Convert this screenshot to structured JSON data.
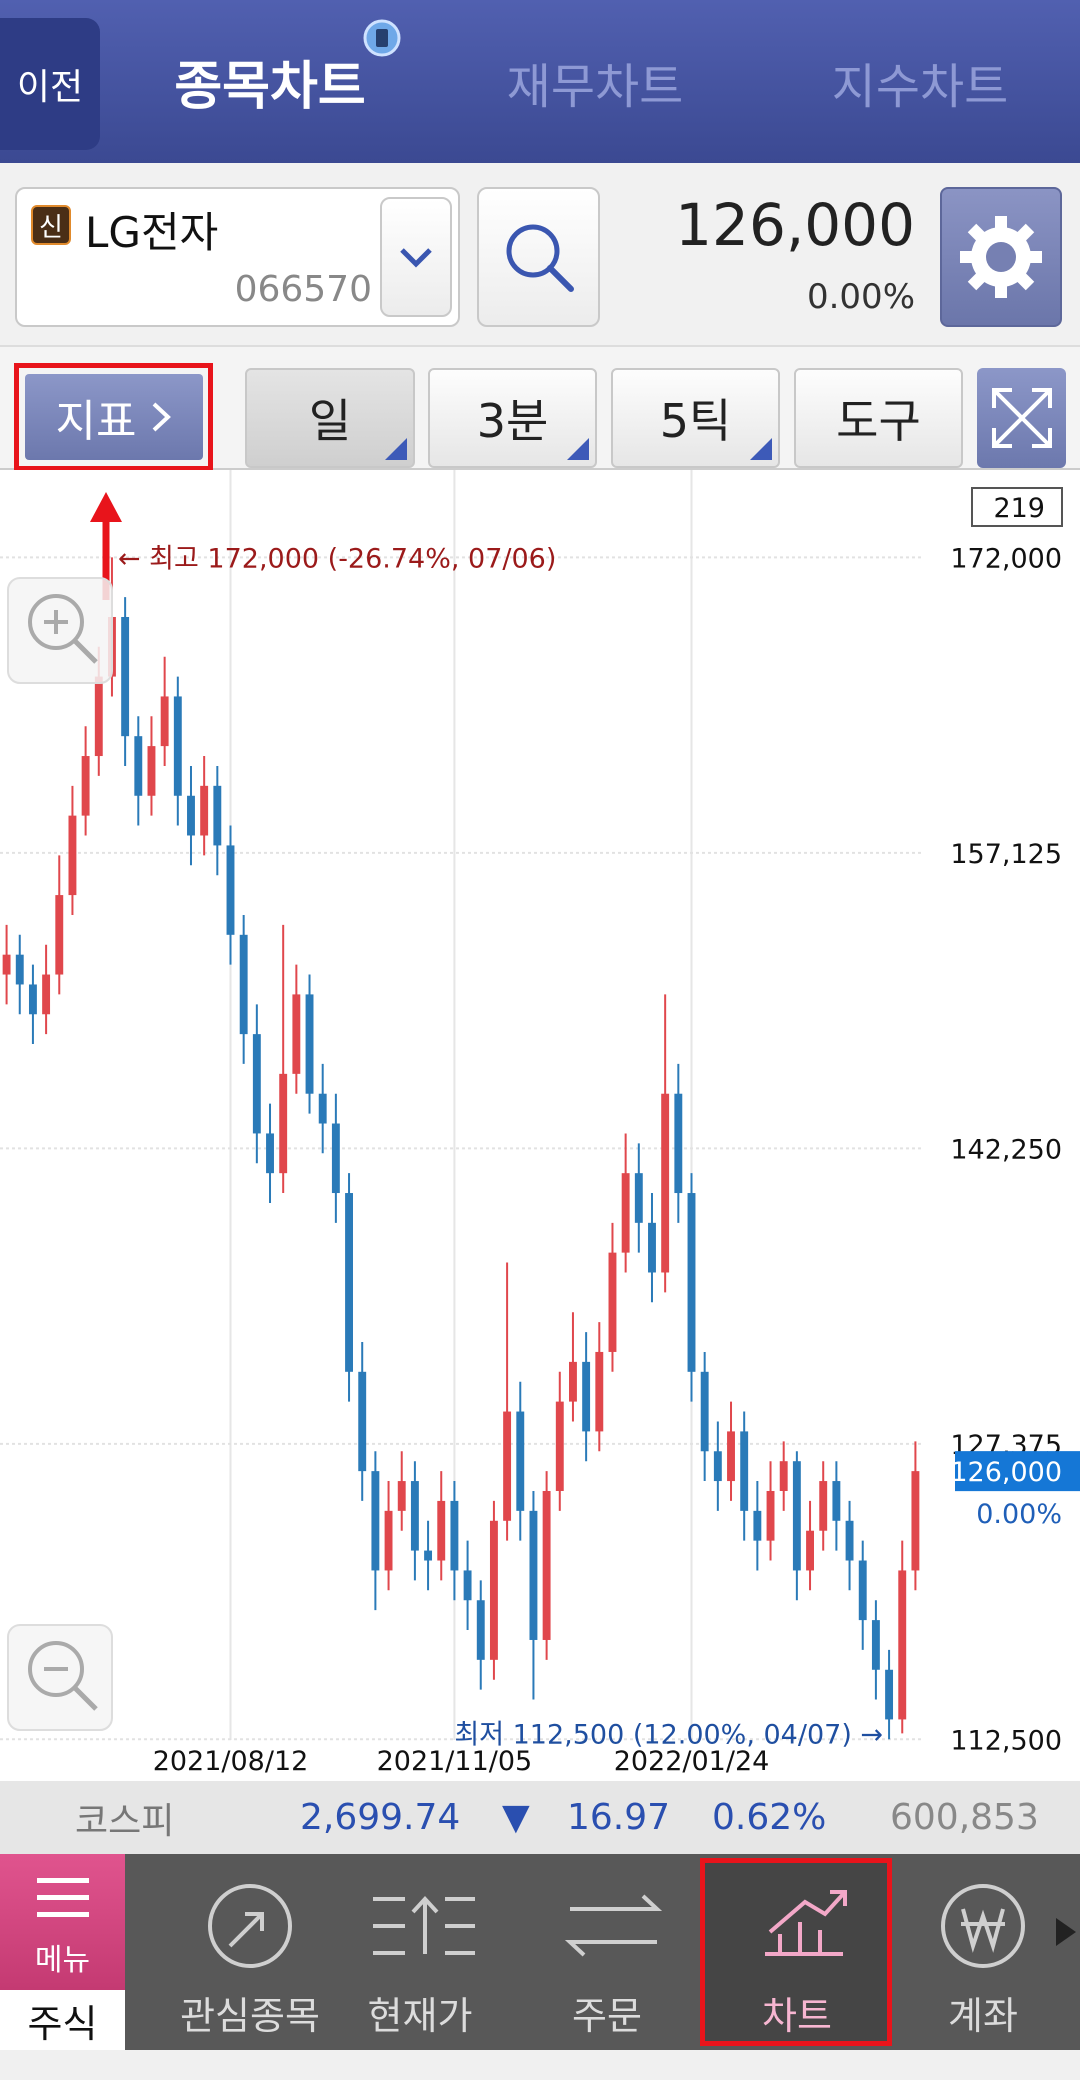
{
  "header": {
    "back": "이전",
    "tabs": [
      "종목차트",
      "재무차트",
      "지수차트"
    ]
  },
  "stock": {
    "badge": "신",
    "name": "LG전자",
    "code": "066570",
    "price": "126,000",
    "change": "0.00%"
  },
  "toolbar": {
    "indicator": "지표",
    "buttons": [
      "일",
      "3분",
      "5틱",
      "도구"
    ]
  },
  "chart_data": {
    "type": "candlestick",
    "candle_count": 219,
    "ylim": [
      110400,
      176400
    ],
    "yticks": [
      {
        "value": 172000,
        "label": "172,000"
      },
      {
        "value": 157125,
        "label": "157,125"
      },
      {
        "value": 142250,
        "label": "142,250"
      },
      {
        "value": 127375,
        "label": "127,375"
      },
      {
        "value": 112500,
        "label": "112,500"
      }
    ],
    "xticks": [
      {
        "value": 17,
        "label": "2021/08/12"
      },
      {
        "value": 34,
        "label": "2021/11/05"
      },
      {
        "value": 52,
        "label": "2022/01/24"
      }
    ],
    "up_color": "#e0474c",
    "down_color": "#2a7ab8",
    "open": [
      151000,
      152000,
      150500,
      149000,
      151000,
      155000,
      159000,
      162000,
      166000,
      169000,
      163000,
      160000,
      162500,
      165000,
      160000,
      158000,
      160500,
      157500,
      153000,
      148000,
      143000,
      141000,
      146000,
      150000,
      145000,
      143500,
      140000,
      131000,
      126000,
      121000,
      124000,
      125500,
      122000,
      121500,
      124500,
      121000,
      119500,
      116500,
      123500,
      129000,
      124000,
      117500,
      125000,
      129500,
      131500,
      128000,
      132000,
      137000,
      141000,
      138500,
      136000,
      145000,
      140000,
      131000,
      127000,
      125500,
      128000,
      124000,
      122500,
      125000,
      126500,
      121000,
      123000,
      125500,
      123500,
      121500,
      118500,
      116000,
      113500,
      121000
    ],
    "high": [
      153500,
      153000,
      151500,
      152500,
      157000,
      160500,
      163500,
      167500,
      172000,
      170000,
      164000,
      164000,
      167000,
      166000,
      161500,
      162000,
      161500,
      158500,
      154000,
      149500,
      144500,
      153500,
      151500,
      151000,
      146500,
      145000,
      141000,
      132500,
      127000,
      125500,
      127000,
      126500,
      123500,
      126000,
      125500,
      122500,
      120500,
      124500,
      136500,
      130500,
      125000,
      126000,
      131000,
      134000,
      133000,
      133500,
      138500,
      143000,
      142500,
      140000,
      150000,
      146500,
      141000,
      132000,
      128500,
      129500,
      129000,
      125500,
      126500,
      127500,
      127000,
      124500,
      126500,
      126500,
      124500,
      122500,
      119500,
      117000,
      122500,
      127500
    ],
    "low": [
      149500,
      149000,
      147500,
      148000,
      150000,
      154000,
      158000,
      161000,
      165000,
      161500,
      158500,
      159000,
      161500,
      158500,
      156500,
      157000,
      156000,
      151500,
      146500,
      141500,
      139500,
      140000,
      145000,
      144000,
      142000,
      138500,
      129500,
      124500,
      119000,
      120000,
      123000,
      120500,
      120000,
      120500,
      119500,
      118000,
      115000,
      115500,
      122500,
      122500,
      114500,
      116500,
      124000,
      128500,
      126500,
      127000,
      131000,
      136000,
      137000,
      134500,
      135000,
      138500,
      129500,
      125500,
      124000,
      124500,
      122500,
      121000,
      121500,
      124000,
      119500,
      120000,
      122000,
      122000,
      120000,
      117000,
      114500,
      112500,
      112800,
      120000
    ],
    "close": [
      152000,
      150500,
      149000,
      151000,
      155000,
      159000,
      162000,
      166000,
      169000,
      163000,
      160000,
      162500,
      165000,
      160000,
      158000,
      160500,
      157500,
      153000,
      148000,
      143000,
      141000,
      146000,
      150000,
      145000,
      143500,
      140000,
      131000,
      126000,
      121000,
      124000,
      125500,
      122000,
      121500,
      124500,
      121000,
      119500,
      116500,
      123500,
      129000,
      124000,
      117500,
      125000,
      129500,
      131500,
      128000,
      132000,
      137000,
      141000,
      138500,
      136000,
      145000,
      140000,
      131000,
      127000,
      125500,
      128000,
      124000,
      122500,
      125000,
      126500,
      121000,
      123000,
      125500,
      123500,
      121500,
      118500,
      116000,
      113500,
      121000,
      126000
    ],
    "high_label": "← 최고 172,000 (-26.74%, 07/06)",
    "high_index": 8,
    "low_label": "최저 112,500 (12.00%, 04/07) →",
    "low_index": 67,
    "current": {
      "value": 126000,
      "label": "126,000"
    },
    "current_change": "0.00%"
  },
  "index_bar": {
    "name": "코스피",
    "value": "2,699.74",
    "arrow": "▼",
    "change": "16.97",
    "pct": "0.62%",
    "volume": "600,853"
  },
  "nav": {
    "menu": "메뉴",
    "section": "주식",
    "items": [
      "관심종목",
      "현재가",
      "주문",
      "차트",
      "계좌"
    ]
  }
}
